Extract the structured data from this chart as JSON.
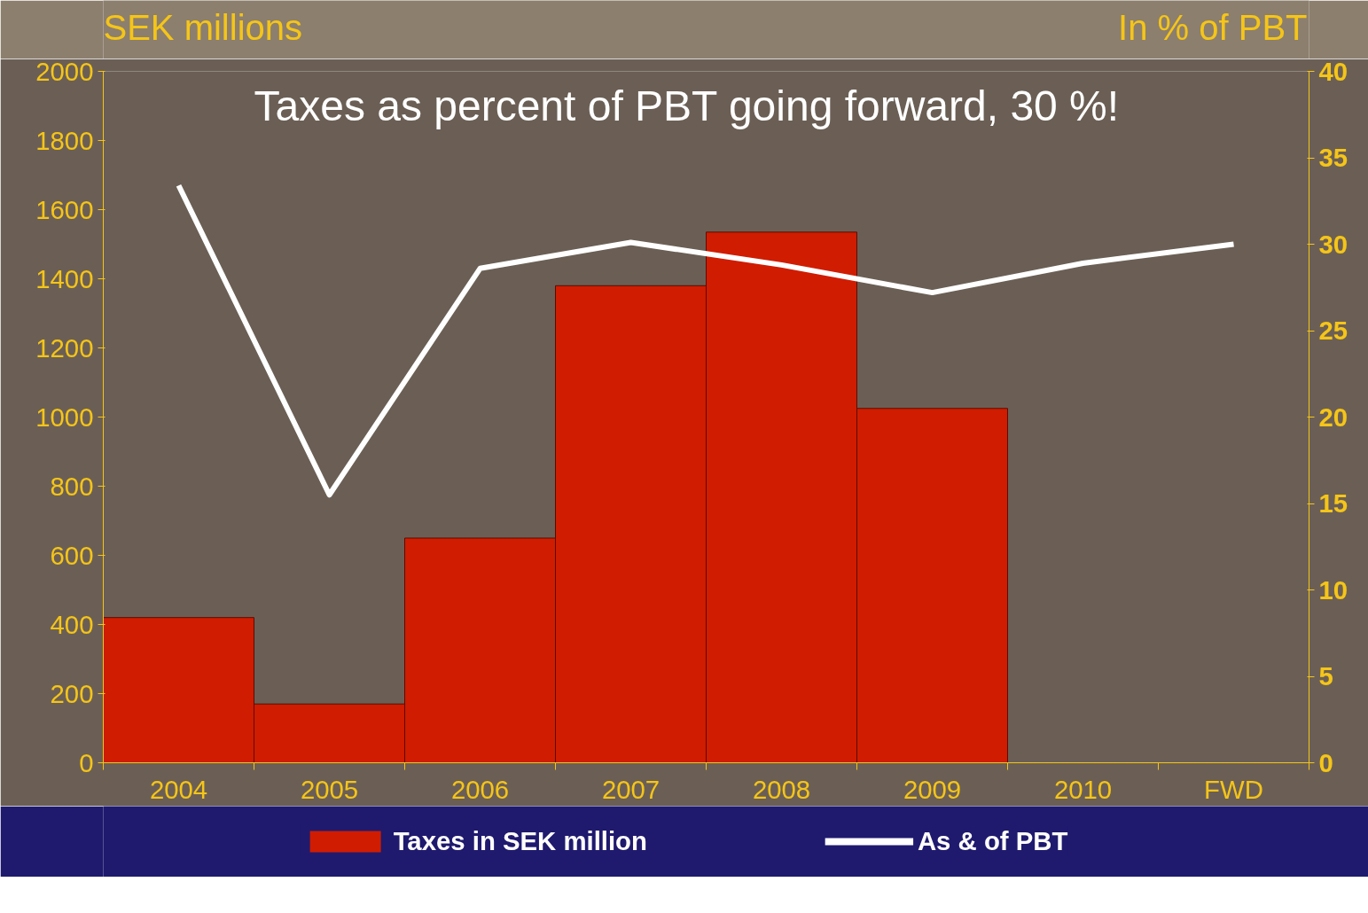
{
  "chart_data": {
    "type": "bar",
    "title": "Taxes as percent of PBT going forward, 30 %!",
    "ylabel": "SEK millions",
    "y2label": "In % of PBT",
    "categories": [
      "2004",
      "2005",
      "2006",
      "2007",
      "2008",
      "2009",
      "2010",
      "FWD"
    ],
    "series": [
      {
        "name": "Taxes in SEK million",
        "color": "#d01c00",
        "values": [
          420,
          170,
          650,
          1380,
          1535,
          1025,
          null,
          null
        ]
      },
      {
        "name": "As & of PBT",
        "color": "#ffffff",
        "type": "line",
        "axis": "y2",
        "values": [
          33.4,
          15.5,
          28.6,
          30.1,
          28.8,
          27.2,
          28.9,
          30.0
        ]
      }
    ],
    "ylim": [
      0,
      2000
    ],
    "yticks": [
      0,
      200,
      400,
      600,
      800,
      1000,
      1200,
      1400,
      1600,
      1800,
      2000
    ],
    "y2lim": [
      0,
      40
    ],
    "y2ticks": [
      0,
      5,
      10,
      15,
      20,
      25,
      30,
      35,
      40
    ],
    "grid": false,
    "legend": "bottom",
    "line_style": "solid",
    "marker": "none"
  }
}
